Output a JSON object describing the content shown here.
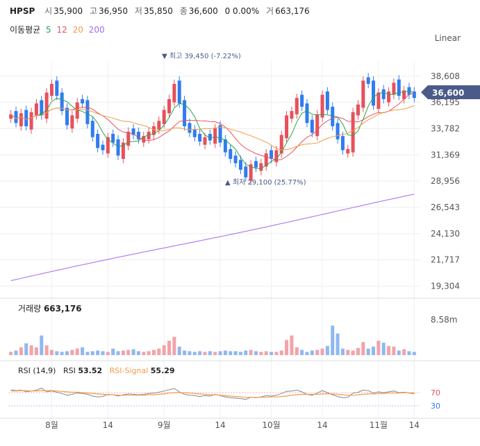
{
  "header": {
    "ticker": "HPSP",
    "open_label": "시",
    "open": "35,900",
    "high_label": "고",
    "high": "36,950",
    "low_label": "저",
    "low": "35,850",
    "close_label": "종",
    "close": "36,600",
    "change": "0 0.00%",
    "volume_label": "거",
    "volume": "663,176"
  },
  "ma_legend": {
    "label": "이동평균",
    "p5": "5",
    "p12": "12",
    "p20": "20",
    "p200": "200"
  },
  "scale_mode": "Linear",
  "annotations": {
    "high": "▼ 최고 39,450 (-7.22%)",
    "low": "▲ 최저 29,100 (25.77%)",
    "last_price": "36,600"
  },
  "volume_panel": {
    "label": "거래량",
    "value": "663,176",
    "axis_label": "8.58m"
  },
  "rsi_panel": {
    "label": "RSI (14,9)",
    "rsi_name": "RSI",
    "rsi_value": "53.52",
    "signal_name": "RSI-Signal",
    "signal_value": "55.29",
    "level_high": "70",
    "level_low": "30"
  },
  "colors": {
    "up": "#e8505b",
    "down": "#2f7cf0",
    "ma5": "#2aa44a",
    "ma12": "#e8505b",
    "ma20": "#f39a4a",
    "ma200": "#a26af0",
    "last": "#4a5b8a"
  },
  "chart_data": {
    "type": "candlestick",
    "y_ticks": [
      "38,608",
      "36,195",
      "33,782",
      "31,369",
      "28,956",
      "26,543",
      "24,130",
      "21,717",
      "19,304"
    ],
    "ylim": [
      18500,
      40000
    ],
    "x_labels": [
      "8월",
      "14",
      "9월",
      "14",
      "10월",
      "14",
      "11월",
      "14"
    ],
    "closes": [
      35100,
      34300,
      35200,
      34000,
      35300,
      36100,
      35000,
      37100,
      37900,
      36800,
      35400,
      34100,
      35000,
      36200,
      36100,
      34200,
      33000,
      32000,
      31800,
      33000,
      32500,
      31300,
      32500,
      33500,
      33200,
      32800,
      33100,
      33500,
      34000,
      34500,
      35500,
      36500,
      37900,
      36100,
      34000,
      33400,
      33000,
      32600,
      33000,
      32700,
      33800,
      32500,
      31600,
      31000,
      30600,
      30000,
      29300,
      30500,
      30200,
      30600,
      31500,
      31000,
      31800,
      33200,
      35000,
      35400,
      36600,
      35800,
      34300,
      33400,
      35100,
      36900,
      35500,
      34000,
      32800,
      31800,
      31900,
      35300,
      36000,
      38200,
      37900,
      35900,
      37100,
      36500,
      37200,
      38000,
      36800,
      37300,
      36900,
      36600
    ],
    "volumes": [
      0.5,
      0.7,
      1.2,
      1.8,
      1.5,
      1.2,
      3.0,
      1.5,
      0.8,
      0.6,
      0.5,
      0.6,
      0.8,
      1.0,
      1.2,
      0.5,
      0.6,
      0.7,
      0.6,
      0.5,
      1.0,
      0.6,
      0.7,
      0.8,
      0.9,
      0.6,
      0.5,
      0.6,
      0.8,
      1.0,
      1.5,
      2.2,
      2.8,
      1.3,
      0.7,
      0.6,
      0.5,
      0.6,
      0.5,
      0.6,
      0.5,
      0.6,
      0.7,
      0.6,
      0.6,
      0.5,
      0.7,
      0.8,
      0.6,
      0.5,
      0.6,
      0.5,
      0.5,
      0.7,
      2.3,
      3.0,
      1.2,
      0.8,
      0.5,
      0.7,
      0.8,
      1.0,
      1.4,
      4.5,
      3.3,
      1.0,
      0.8,
      0.7,
      1.1,
      2.0,
      1.0,
      1.3,
      2.2,
      1.9,
      1.4,
      1.3,
      0.7,
      0.9,
      0.6,
      0.5
    ],
    "volume_max": 8.58,
    "rsi": [
      63,
      61,
      62,
      58,
      60,
      62,
      67,
      58,
      60,
      57,
      54,
      50,
      52,
      55,
      54,
      52,
      48,
      46,
      47,
      52,
      51,
      48,
      51,
      53,
      52,
      51,
      52,
      54,
      55,
      57,
      60,
      63,
      66,
      58,
      52,
      50,
      49,
      47,
      49,
      48,
      52,
      49,
      46,
      44,
      43,
      42,
      40,
      45,
      44,
      46,
      49,
      48,
      50,
      54,
      59,
      60,
      62,
      58,
      52,
      50,
      55,
      61,
      56,
      51,
      47,
      44,
      45,
      55,
      57,
      62,
      61,
      55,
      58,
      56,
      58,
      60,
      56,
      57,
      55,
      53.52
    ],
    "rsi_signal": [
      60,
      60,
      61,
      61,
      60,
      60,
      61,
      61,
      61,
      60,
      59,
      58,
      57,
      57,
      56,
      55,
      54,
      53,
      52,
      51,
      51,
      50,
      50,
      50,
      50,
      50,
      50,
      51,
      51,
      52,
      53,
      55,
      56,
      56,
      56,
      55,
      54,
      53,
      52,
      51,
      51,
      50,
      49,
      48,
      47,
      46,
      45,
      45,
      45,
      45,
      45,
      46,
      46,
      47,
      48,
      50,
      51,
      52,
      52,
      52,
      52,
      53,
      53,
      53,
      52,
      51,
      50,
      50,
      51,
      52,
      53,
      53,
      54,
      54,
      55,
      55,
      55,
      56,
      55.5,
      55.29
    ]
  }
}
